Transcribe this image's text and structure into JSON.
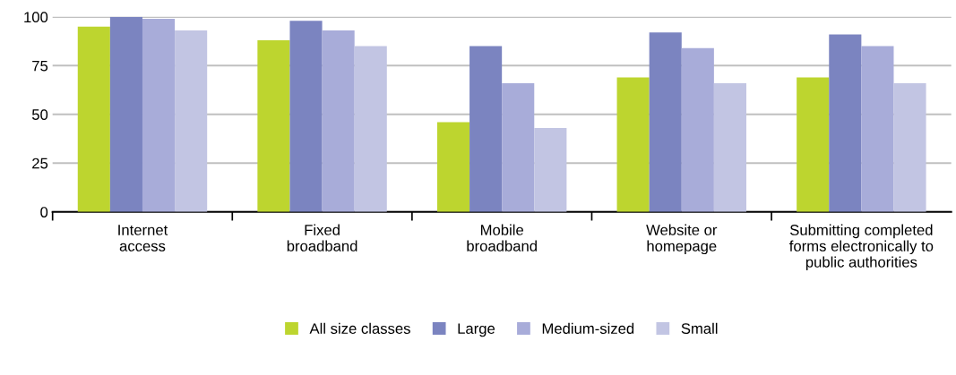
{
  "chart_data": {
    "type": "bar",
    "categories": [
      "Internet\naccess",
      "Fixed\nbroadband",
      "Mobile\nbroadband",
      "Website or\nhomepage",
      "Submitting completed\nforms electronically to\npublic authorities"
    ],
    "series": [
      {
        "name": "All size classes",
        "color": "#bdd52f",
        "values": [
          95,
          88,
          46,
          69,
          69
        ]
      },
      {
        "name": "Large",
        "color": "#7b84c0",
        "values": [
          100,
          98,
          85,
          92,
          91
        ]
      },
      {
        "name": "Medium-sized",
        "color": "#a8acd9",
        "values": [
          99,
          93,
          66,
          84,
          85
        ]
      },
      {
        "name": "Small",
        "color": "#c2c5e3",
        "values": [
          93,
          85,
          43,
          66,
          66
        ]
      }
    ],
    "ylim": [
      0,
      100
    ],
    "yticks": [
      0,
      25,
      50,
      75,
      100
    ],
    "grid": "y",
    "legend": "bottom"
  }
}
